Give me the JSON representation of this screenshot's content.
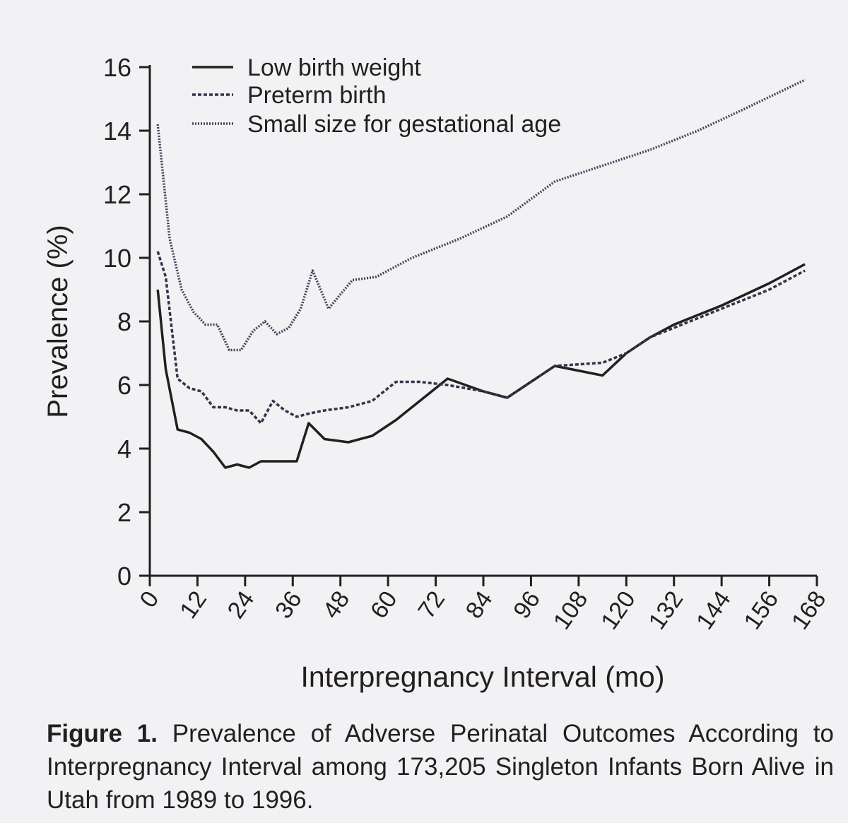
{
  "chart_data": {
    "type": "line",
    "xlabel": "Interpregnancy Interval (mo)",
    "ylabel": "Prevalence (%)",
    "xlim": [
      0,
      168
    ],
    "ylim": [
      0,
      16
    ],
    "x_ticks": [
      "0",
      "12",
      "24",
      "36",
      "48",
      "60",
      "72",
      "84",
      "96",
      "108",
      "120",
      "132",
      "144",
      "156",
      "168"
    ],
    "y_ticks": [
      "0",
      "2",
      "4",
      "6",
      "8",
      "10",
      "12",
      "14",
      "16"
    ],
    "grid": false,
    "legend_position": "top-left",
    "series": [
      {
        "name": "Low birth weight",
        "style": "solid",
        "x": [
          2,
          4,
          7,
          10,
          13,
          16,
          19,
          22,
          25,
          28,
          31,
          34,
          37,
          40,
          44,
          50,
          56,
          62,
          68,
          75,
          84,
          90,
          96,
          102,
          114,
          120,
          126,
          132,
          144,
          156,
          165
        ],
        "y": [
          9.0,
          6.5,
          4.6,
          4.5,
          4.3,
          3.9,
          3.4,
          3.5,
          3.4,
          3.6,
          3.6,
          3.6,
          3.6,
          4.8,
          4.3,
          4.2,
          4.4,
          4.9,
          5.5,
          6.2,
          5.8,
          5.6,
          6.1,
          6.6,
          6.3,
          7.0,
          7.5,
          7.9,
          8.5,
          9.2,
          9.8
        ]
      },
      {
        "name": "Preterm birth",
        "style": "dashed",
        "x": [
          2,
          4,
          7,
          10,
          13,
          16,
          19,
          22,
          25,
          28,
          31,
          34,
          37,
          40,
          44,
          50,
          56,
          62,
          68,
          75,
          84,
          90,
          96,
          102,
          114,
          120,
          126,
          132,
          144,
          156,
          165
        ],
        "y": [
          10.2,
          9.4,
          6.2,
          5.9,
          5.8,
          5.3,
          5.3,
          5.2,
          5.2,
          4.8,
          5.5,
          5.2,
          5.0,
          5.1,
          5.2,
          5.3,
          5.5,
          6.1,
          6.1,
          6.0,
          5.8,
          5.6,
          6.1,
          6.6,
          6.7,
          7.0,
          7.5,
          7.8,
          8.4,
          9.0,
          9.6
        ]
      },
      {
        "name": "Small size for gestational age",
        "style": "dotted",
        "x": [
          2,
          5,
          8,
          11,
          14,
          17,
          20,
          23,
          26,
          29,
          32,
          35,
          38,
          41,
          45,
          51,
          57,
          66,
          78,
          90,
          102,
          114,
          126,
          138,
          150,
          165
        ],
        "y": [
          14.2,
          10.6,
          9.0,
          8.3,
          7.9,
          7.9,
          7.1,
          7.1,
          7.7,
          8.0,
          7.6,
          7.8,
          8.4,
          9.6,
          8.4,
          9.3,
          9.4,
          10.0,
          10.6,
          11.3,
          12.4,
          12.9,
          13.4,
          14.0,
          14.7,
          15.6
        ]
      }
    ]
  },
  "caption": {
    "label": "Figure 1.",
    "text": "Prevalence of Adverse Perinatal Outcomes According to Interpregnancy Interval among 173,205 Singleton Infants Born Alive in Utah from 1989 to 1996."
  },
  "colors": {
    "ink": "#231f20",
    "low_birth_weight": "#231f20",
    "preterm_birth": "#3b2f4a",
    "small_for_gestational_age": "#4a3f5a",
    "background": "#f2f1f3"
  }
}
